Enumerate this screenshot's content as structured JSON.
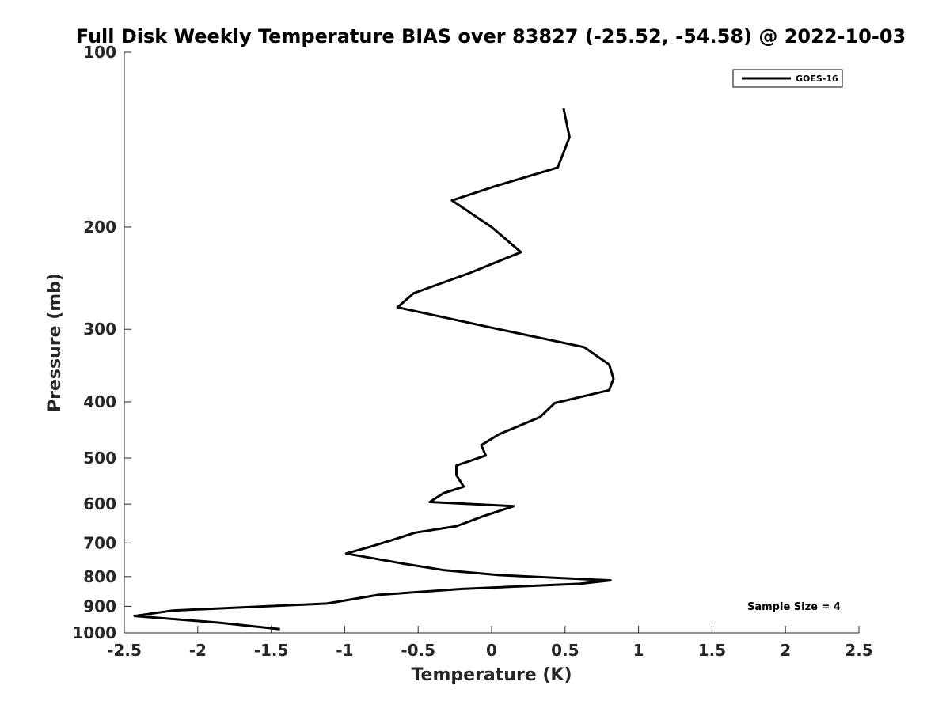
{
  "chart_data": {
    "type": "line",
    "title": "Full Disk Weekly Temperature BIAS over 83827 (-25.52, -54.58) @ 2022-10-03",
    "xlabel": "Temperature (K)",
    "ylabel": "Pressure (mb)",
    "xlim": [
      -2.5,
      2.5
    ],
    "ylim": [
      100,
      1000
    ],
    "yscale": "log",
    "y_reversed": true,
    "grid": false,
    "legend_position": "top-right",
    "x_ticks": [
      -2.5,
      -2,
      -1.5,
      -1,
      -0.5,
      0,
      0.5,
      1,
      1.5,
      2,
      2.5
    ],
    "x_tick_labels": [
      "-2.5",
      "-2",
      "-1.5",
      "-1",
      "-0.5",
      "0",
      "0.5",
      "1",
      "1.5",
      "2",
      "2.5"
    ],
    "y_ticks": [
      100,
      200,
      300,
      400,
      500,
      600,
      700,
      800,
      900,
      1000
    ],
    "y_tick_labels": [
      "100",
      "200",
      "300",
      "400",
      "500",
      "600",
      "700",
      "800",
      "900",
      "1000"
    ],
    "series": [
      {
        "name": "GOES-16",
        "color": "#000000",
        "points": [
          [
            0.49,
            125
          ],
          [
            0.53,
            140
          ],
          [
            0.45,
            158
          ],
          [
            0.03,
            170
          ],
          [
            -0.27,
            180
          ],
          [
            0.0,
            200
          ],
          [
            0.2,
            221
          ],
          [
            -0.15,
            240
          ],
          [
            -0.53,
            260
          ],
          [
            -0.64,
            275
          ],
          [
            0.05,
            300
          ],
          [
            0.63,
            322
          ],
          [
            0.8,
            345
          ],
          [
            0.83,
            365
          ],
          [
            0.8,
            382
          ],
          [
            0.43,
            402
          ],
          [
            0.33,
            425
          ],
          [
            0.05,
            455
          ],
          [
            -0.07,
            475
          ],
          [
            -0.04,
            495
          ],
          [
            -0.24,
            515
          ],
          [
            -0.24,
            535
          ],
          [
            -0.19,
            560
          ],
          [
            -0.33,
            575
          ],
          [
            -0.42,
            595
          ],
          [
            0.15,
            605
          ],
          [
            -0.06,
            630
          ],
          [
            -0.24,
            655
          ],
          [
            -0.52,
            672
          ],
          [
            -0.66,
            690
          ],
          [
            -0.82,
            710
          ],
          [
            -0.99,
            730
          ],
          [
            -0.6,
            760
          ],
          [
            -0.32,
            780
          ],
          [
            0.05,
            795
          ],
          [
            0.81,
            812
          ],
          [
            0.6,
            823
          ],
          [
            -0.2,
            840
          ],
          [
            -0.77,
            860
          ],
          [
            -1.12,
            890
          ],
          [
            -2.17,
            915
          ],
          [
            -2.43,
            935
          ],
          [
            -1.86,
            960
          ],
          [
            -1.44,
            985
          ]
        ]
      }
    ],
    "annotations": [
      "Sample Size = 4"
    ]
  }
}
